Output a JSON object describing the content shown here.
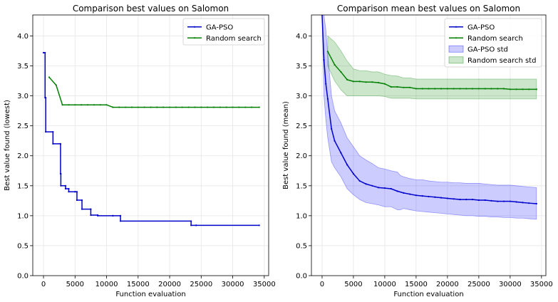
{
  "chart_data": [
    {
      "type": "line",
      "title": "Comparison best values on Salomon",
      "xlabel": "Function evaluation",
      "ylabel": "Best value found (lowest)",
      "xlim": [
        -1700,
        35700
      ],
      "ylim": [
        0,
        4.35
      ],
      "xticks": [
        0,
        5000,
        10000,
        15000,
        20000,
        25000,
        30000,
        35000
      ],
      "yticks": [
        0.0,
        0.5,
        1.0,
        1.5,
        2.0,
        2.5,
        3.0,
        3.5,
        4.0
      ],
      "grid": true,
      "legend_position": "top-right",
      "series": [
        {
          "name": "GA-PSO",
          "color": "#0000cc",
          "x": [
            0,
            250,
            250,
            350,
            350,
            1500,
            1500,
            2700,
            2700,
            2750,
            2750,
            3500,
            3500,
            4000,
            4000,
            5000,
            5000,
            5300,
            5300,
            6100,
            6100,
            7500,
            7500,
            8600,
            8600,
            11000,
            11000,
            12200,
            12200,
            23400,
            23400,
            24200,
            24200,
            34200
          ],
          "y": [
            3.72,
            3.72,
            2.97,
            2.97,
            2.4,
            2.4,
            2.2,
            2.2,
            1.7,
            1.7,
            1.5,
            1.5,
            1.45,
            1.45,
            1.4,
            1.4,
            1.4,
            1.4,
            1.26,
            1.26,
            1.11,
            1.11,
            1.01,
            1.01,
            1.0,
            1.0,
            1.0,
            1.0,
            0.91,
            0.91,
            0.84,
            0.84,
            0.84,
            0.84
          ]
        },
        {
          "name": "Random search",
          "color": "#008000",
          "x": [
            900,
            2000,
            3000,
            4000,
            5000,
            6000,
            7000,
            8000,
            9000,
            10000,
            11000,
            12000,
            13000,
            14000,
            15000,
            16000,
            17000,
            18000,
            19000,
            20000,
            21000,
            22000,
            23000,
            24000,
            25000,
            26000,
            27000,
            28000,
            29000,
            30000,
            31000,
            32000,
            33000,
            34200
          ],
          "y": [
            3.31,
            3.18,
            2.85,
            2.85,
            2.85,
            2.85,
            2.85,
            2.85,
            2.85,
            2.85,
            2.81,
            2.81,
            2.81,
            2.81,
            2.81,
            2.81,
            2.81,
            2.81,
            2.81,
            2.81,
            2.81,
            2.81,
            2.81,
            2.81,
            2.81,
            2.81,
            2.81,
            2.81,
            2.81,
            2.81,
            2.81,
            2.81,
            2.81,
            2.81
          ]
        }
      ]
    },
    {
      "type": "line",
      "title": "Comparison mean best values on Salomon",
      "xlabel": "Function evaluation",
      "ylabel": "Best value found (mean)",
      "xlim": [
        -1700,
        35700
      ],
      "ylim": [
        0,
        4.35
      ],
      "xticks": [
        0,
        5000,
        10000,
        15000,
        20000,
        25000,
        30000,
        35000
      ],
      "yticks": [
        0.0,
        0.5,
        1.0,
        1.5,
        2.0,
        2.5,
        3.0,
        3.5,
        4.0
      ],
      "grid": true,
      "legend_position": "top-right",
      "series": [
        {
          "name": "GA-PSO",
          "color": "#0000cc",
          "x": [
            0,
            300,
            600,
            900,
            1500,
            2000,
            3000,
            4000,
            5000,
            6000,
            7000,
            8000,
            9000,
            10000,
            11000,
            12000,
            13000,
            14000,
            15000,
            16000,
            17000,
            18000,
            19000,
            20000,
            21000,
            22000,
            23000,
            24000,
            25000,
            26000,
            27000,
            28000,
            29000,
            30000,
            31000,
            32000,
            33000,
            34200
          ],
          "y": [
            4.35,
            3.6,
            3.2,
            2.95,
            2.45,
            2.25,
            2.05,
            1.85,
            1.7,
            1.58,
            1.53,
            1.5,
            1.47,
            1.46,
            1.45,
            1.41,
            1.38,
            1.36,
            1.34,
            1.33,
            1.32,
            1.31,
            1.3,
            1.29,
            1.28,
            1.27,
            1.27,
            1.27,
            1.26,
            1.26,
            1.25,
            1.24,
            1.24,
            1.24,
            1.23,
            1.22,
            1.21,
            1.2
          ]
        },
        {
          "name": "Random search",
          "color": "#008000",
          "x": [
            900,
            2000,
            3000,
            4000,
            5000,
            6000,
            7000,
            8000,
            9000,
            10000,
            11000,
            12000,
            13000,
            14000,
            15000,
            16000,
            17000,
            18000,
            19000,
            20000,
            21000,
            22000,
            23000,
            24000,
            25000,
            26000,
            27000,
            28000,
            29000,
            30000,
            31000,
            32000,
            33000,
            34200
          ],
          "y": [
            3.74,
            3.52,
            3.4,
            3.27,
            3.24,
            3.24,
            3.23,
            3.23,
            3.22,
            3.2,
            3.15,
            3.15,
            3.14,
            3.14,
            3.12,
            3.12,
            3.12,
            3.12,
            3.12,
            3.12,
            3.12,
            3.12,
            3.12,
            3.12,
            3.12,
            3.12,
            3.12,
            3.12,
            3.12,
            3.11,
            3.11,
            3.11,
            3.11,
            3.11
          ]
        }
      ],
      "bands": [
        {
          "name": "GA-PSO std",
          "color": "#0000ff",
          "opacity": 0.2,
          "x": [
            0,
            300,
            600,
            900,
            1500,
            2000,
            3000,
            4000,
            5000,
            6000,
            7000,
            8000,
            9000,
            10000,
            11000,
            12000,
            12500,
            13000,
            14000,
            15000,
            16000,
            17000,
            18000,
            19000,
            20000,
            21000,
            22000,
            23000,
            24000,
            25000,
            26000,
            27000,
            28000,
            29000,
            30000,
            31000,
            32000,
            33000,
            34200
          ],
          "upper": [
            4.35,
            4.35,
            4.1,
            3.7,
            3.0,
            2.75,
            2.55,
            2.3,
            2.15,
            2.0,
            1.93,
            1.87,
            1.8,
            1.78,
            1.75,
            1.73,
            1.67,
            1.65,
            1.62,
            1.6,
            1.6,
            1.58,
            1.57,
            1.56,
            1.56,
            1.55,
            1.55,
            1.54,
            1.54,
            1.54,
            1.53,
            1.52,
            1.51,
            1.51,
            1.51,
            1.5,
            1.49,
            1.48,
            1.47
          ],
          "lower": [
            4.35,
            3.0,
            2.6,
            2.3,
            1.9,
            1.8,
            1.65,
            1.45,
            1.35,
            1.27,
            1.22,
            1.2,
            1.18,
            1.15,
            1.15,
            1.1,
            1.1,
            1.12,
            1.1,
            1.08,
            1.07,
            1.06,
            1.05,
            1.04,
            1.03,
            1.02,
            1.01,
            1.0,
            1.0,
            0.99,
            0.99,
            0.98,
            0.98,
            0.97,
            0.97,
            0.96,
            0.96,
            0.95,
            0.94
          ]
        },
        {
          "name": "Random search std",
          "color": "#008000",
          "opacity": 0.2,
          "x": [
            900,
            2000,
            3000,
            4000,
            5000,
            6000,
            7000,
            8000,
            9000,
            10000,
            11000,
            12000,
            13000,
            14000,
            15000,
            16000,
            20000,
            25000,
            30000,
            34200
          ],
          "upper": [
            4.0,
            3.9,
            3.75,
            3.58,
            3.45,
            3.42,
            3.42,
            3.4,
            3.4,
            3.36,
            3.34,
            3.33,
            3.3,
            3.3,
            3.28,
            3.28,
            3.28,
            3.28,
            3.28,
            3.28
          ],
          "lower": [
            3.5,
            3.25,
            3.1,
            3.0,
            3.0,
            3.0,
            3.0,
            3.0,
            3.0,
            2.99,
            2.96,
            2.96,
            2.96,
            2.96,
            2.95,
            2.95,
            2.95,
            2.95,
            2.95,
            2.95
          ]
        }
      ]
    }
  ]
}
